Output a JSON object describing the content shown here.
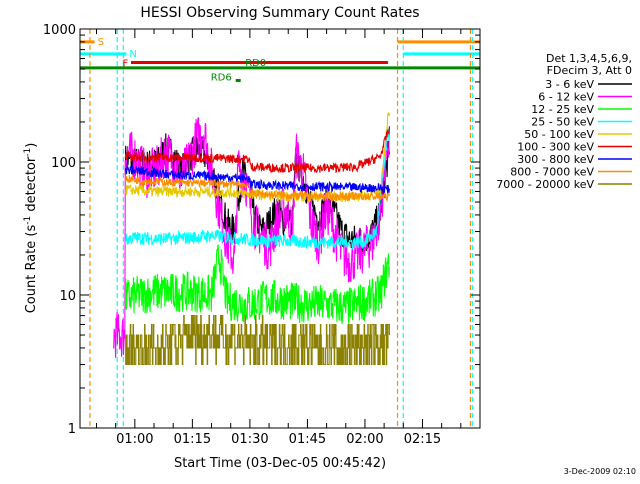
{
  "chart_data": {
    "type": "line",
    "title": "HESSI Observing Summary Count Rates",
    "xlabel": "Start Time (03-Dec-05 00:45:42)",
    "ylabel": "Count Rate (s",
    "ylabel_sup": "-1",
    "ylabel_mid": " detector",
    "ylabel_end": ")",
    "y_scale": "log",
    "ylim": [
      1,
      1000
    ],
    "xlim_minutes": [
      45.7,
      150.0
    ],
    "x_ticks": [
      {
        "label": "01:00",
        "minute": 60
      },
      {
        "label": "01:15",
        "minute": 75
      },
      {
        "label": "01:30",
        "minute": 90
      },
      {
        "label": "01:45",
        "minute": 105
      },
      {
        "label": "02:00",
        "minute": 120
      },
      {
        "label": "02:15",
        "minute": 135
      }
    ],
    "y_ticks": [
      {
        "label": "1",
        "value": 1
      },
      {
        "label": "10",
        "value": 10
      },
      {
        "label": "100",
        "value": 100
      },
      {
        "label": "1000",
        "value": 1000
      }
    ],
    "legend": {
      "position": "right",
      "header": [
        "Det 1,3,4,5,6,9,",
        "FDecim 3, Att 0"
      ],
      "entries": [
        {
          "label": "3 - 6 keV",
          "color": "#000000"
        },
        {
          "label": "6 - 12 keV",
          "color": "#ff00ff"
        },
        {
          "label": "12 - 25 keV",
          "color": "#00ff00"
        },
        {
          "label": "25 - 50 keV",
          "color": "#00ffff"
        },
        {
          "label": "50 - 100 keV",
          "color": "#e6c800"
        },
        {
          "label": "100 - 300 keV",
          "color": "#e60000"
        },
        {
          "label": "300 - 800 keV",
          "color": "#0000ff"
        },
        {
          "label": "800 - 7000 keV",
          "color": "#ff8c00"
        },
        {
          "label": "7000 - 20000 keV",
          "color": "#8b8000"
        }
      ]
    },
    "flag_bars": [
      {
        "label": "S",
        "color": "#ff8c00",
        "y": 800,
        "segments": [
          [
            45.7,
            49.5
          ],
          [
            128.5,
            150.0
          ]
        ],
        "label_at": 49.5
      },
      {
        "label": "N",
        "color": "#00ffff",
        "y": 650,
        "segments": [
          [
            45.7,
            57.8
          ],
          [
            130.0,
            150.0
          ]
        ],
        "label_at": 57.8
      },
      {
        "label": "F",
        "color": "#e60000",
        "y": 560,
        "segments": [
          [
            59.0,
            126.0
          ]
        ],
        "label_at": 56.0
      },
      {
        "label": "RD0",
        "color": "#008800",
        "y": 510,
        "segments": [
          [
            45.7,
            150.0
          ]
        ],
        "label_at": 88.0
      },
      {
        "label": "RD6",
        "color": "#008800",
        "y": 410,
        "segments": [
          [
            86.3,
            87.6
          ]
        ],
        "label_at": 79.0
      }
    ],
    "vlines": [
      {
        "minute": 48.3,
        "color": "#ff8c00"
      },
      {
        "minute": 55.4,
        "color": "#00ffff"
      },
      {
        "minute": 57.0,
        "color": "#00ffff"
      },
      {
        "minute": 128.5,
        "color": "#ff8c00"
      },
      {
        "minute": 130.0,
        "color": "#00ffff"
      },
      {
        "minute": 147.5,
        "color": "#ff8c00"
      },
      {
        "minute": 148.0,
        "color": "#00ffff"
      }
    ],
    "series": [
      {
        "name": "3 - 6 keV",
        "color": "#000000",
        "x_range": [
          57.5,
          126.5
        ],
        "knots": [
          [
            57.5,
            105
          ],
          [
            60,
            100
          ],
          [
            63,
            95
          ],
          [
            66,
            100
          ],
          [
            68,
            125
          ],
          [
            70,
            115
          ],
          [
            72,
            85
          ],
          [
            74,
            105
          ],
          [
            76,
            125
          ],
          [
            78,
            115
          ],
          [
            80,
            95
          ],
          [
            82,
            55
          ],
          [
            84,
            35
          ],
          [
            86,
            30
          ],
          [
            88,
            85
          ],
          [
            90,
            65
          ],
          [
            91,
            40
          ],
          [
            93,
            30
          ],
          [
            95,
            35
          ],
          [
            97,
            45
          ],
          [
            99,
            35
          ],
          [
            100,
            42
          ],
          [
            101,
            32
          ],
          [
            102,
            105
          ],
          [
            104,
            75
          ],
          [
            106,
            45
          ],
          [
            108,
            38
          ],
          [
            110,
            50
          ],
          [
            112,
            42
          ],
          [
            114,
            30
          ],
          [
            116,
            26
          ],
          [
            118,
            26
          ],
          [
            120,
            26
          ],
          [
            122,
            30
          ],
          [
            124,
            42
          ],
          [
            126,
            110
          ]
        ],
        "noise": 0.12
      },
      {
        "name": "6 - 12 keV",
        "color": "#ff00ff",
        "x_range": [
          54.5,
          126.5
        ],
        "knots": [
          [
            54.5,
            5
          ],
          [
            57.4,
            5
          ],
          [
            57.5,
            120
          ],
          [
            60,
            110
          ],
          [
            63,
            80
          ],
          [
            66,
            90
          ],
          [
            68,
            120
          ],
          [
            70,
            105
          ],
          [
            72,
            75
          ],
          [
            74,
            100
          ],
          [
            76,
            145
          ],
          [
            78,
            175
          ],
          [
            80,
            85
          ],
          [
            82,
            45
          ],
          [
            84,
            25
          ],
          [
            86,
            18
          ],
          [
            87,
            95
          ],
          [
            89,
            70
          ],
          [
            91,
            35
          ],
          [
            93,
            28
          ],
          [
            95,
            22
          ],
          [
            97,
            35
          ],
          [
            99,
            45
          ],
          [
            100,
            40
          ],
          [
            101,
            30
          ],
          [
            102,
            115
          ],
          [
            104,
            80
          ],
          [
            106,
            35
          ],
          [
            108,
            25
          ],
          [
            110,
            45
          ],
          [
            112,
            30
          ],
          [
            114,
            20
          ],
          [
            116,
            18
          ],
          [
            118,
            20
          ],
          [
            120,
            22
          ],
          [
            122,
            25
          ],
          [
            124,
            40
          ],
          [
            126,
            150
          ]
        ],
        "noise": 0.18
      },
      {
        "name": "12 - 25 keV",
        "color": "#00ff00",
        "x_range": [
          57.5,
          126.5
        ],
        "knots": [
          [
            57.5,
            9.5
          ],
          [
            65,
            10.5
          ],
          [
            75,
            10.5
          ],
          [
            80,
            10
          ],
          [
            82,
            20
          ],
          [
            84,
            9
          ],
          [
            90,
            8.5
          ],
          [
            95,
            9.5
          ],
          [
            100,
            9
          ],
          [
            105,
            8.5
          ],
          [
            110,
            8.5
          ],
          [
            115,
            8
          ],
          [
            120,
            9
          ],
          [
            124,
            10
          ],
          [
            126,
            17
          ]
        ],
        "noise": 0.15
      },
      {
        "name": "25 - 50 keV",
        "color": "#00ffff",
        "x_range": [
          57.5,
          126.5
        ],
        "knots": [
          [
            57.5,
            26
          ],
          [
            60,
            27
          ],
          [
            65,
            26.5
          ],
          [
            70,
            26.5
          ],
          [
            75,
            27
          ],
          [
            80,
            28
          ],
          [
            85,
            27
          ],
          [
            90,
            26
          ],
          [
            95,
            25.5
          ],
          [
            100,
            25.5
          ],
          [
            105,
            25
          ],
          [
            110,
            25
          ],
          [
            115,
            25
          ],
          [
            120,
            25
          ],
          [
            123,
            30
          ],
          [
            126,
            160
          ]
        ],
        "noise": 0.05
      },
      {
        "name": "50 - 100 keV",
        "color": "#e6c800",
        "x_range": [
          57.5,
          126.5
        ],
        "knots": [
          [
            57.5,
            62
          ],
          [
            65,
            60
          ],
          [
            75,
            60
          ],
          [
            85,
            59
          ],
          [
            95,
            56
          ],
          [
            105,
            55
          ],
          [
            115,
            55
          ],
          [
            120,
            56
          ],
          [
            124,
            60
          ],
          [
            126,
            220
          ]
        ],
        "noise": 0.04
      },
      {
        "name": "100 - 300 keV",
        "color": "#e60000",
        "x_range": [
          57.5,
          126.5
        ],
        "knots": [
          [
            57.5,
            110
          ],
          [
            65,
            108
          ],
          [
            75,
            108
          ],
          [
            85,
            106
          ],
          [
            89.9,
            105
          ],
          [
            90.1,
            92
          ],
          [
            100,
            90
          ],
          [
            110,
            90
          ],
          [
            118,
            92
          ],
          [
            124,
            110
          ],
          [
            126,
            170
          ]
        ],
        "noise": 0.035
      },
      {
        "name": "300 - 800 keV",
        "color": "#0000ff",
        "x_range": [
          57.5,
          126.5
        ],
        "knots": [
          [
            57.5,
            88
          ],
          [
            62,
            85
          ],
          [
            70,
            80
          ],
          [
            80,
            78
          ],
          [
            89.9,
            75
          ],
          [
            90.1,
            68
          ],
          [
            100,
            66
          ],
          [
            110,
            65
          ],
          [
            120,
            64
          ],
          [
            124,
            64
          ],
          [
            126,
            62
          ]
        ],
        "noise": 0.035
      },
      {
        "name": "800 - 7000 keV",
        "color": "#ff8c00",
        "x_range": [
          57.5,
          126.5
        ],
        "knots": [
          [
            57.5,
            75
          ],
          [
            62,
            72
          ],
          [
            70,
            70
          ],
          [
            80,
            69
          ],
          [
            89.9,
            67
          ],
          [
            90.1,
            58
          ],
          [
            100,
            56
          ],
          [
            110,
            55
          ],
          [
            120,
            55
          ],
          [
            124,
            55
          ],
          [
            126,
            55
          ]
        ],
        "noise": 0.03
      },
      {
        "name": "7000 - 20000 keV",
        "color": "#8b8000",
        "x_range": [
          57.5,
          126.5
        ],
        "knots": [
          [
            57.5,
            3.8
          ],
          [
            65,
            4
          ],
          [
            70,
            4.3
          ],
          [
            75,
            5
          ],
          [
            80,
            5
          ],
          [
            85,
            4.8
          ],
          [
            90,
            4.5
          ],
          [
            95,
            4.3
          ],
          [
            100,
            4.5
          ],
          [
            105,
            4.2
          ],
          [
            110,
            4
          ],
          [
            115,
            4
          ],
          [
            120,
            4.2
          ],
          [
            126,
            4.5
          ]
        ],
        "noise": 0.18
      }
    ]
  },
  "footer": {
    "timestamp": "3-Dec-2009 02:10"
  }
}
